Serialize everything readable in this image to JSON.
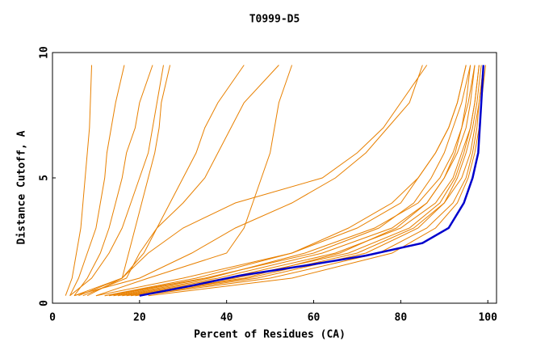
{
  "chart_data": {
    "type": "line",
    "title": "T0999-D5",
    "x_label": "Percent of Residues (CA)",
    "y_label": "Distance Cutoff, A",
    "xlim": [
      0,
      102
    ],
    "ylim": [
      0,
      10
    ],
    "xticks": [
      0,
      20,
      40,
      60,
      80,
      100
    ],
    "yticks": [
      0,
      5,
      10
    ],
    "grid": false,
    "series": [
      {
        "color": "#e88000",
        "x": [
          3,
          4.5,
          5.5,
          6.5,
          7,
          7.5,
          8,
          8.5,
          8.7,
          9
        ],
        "values": [
          0.3,
          1,
          2,
          3,
          4,
          5,
          6,
          7,
          8,
          9.5
        ]
      },
      {
        "color": "#e88000",
        "x": [
          4,
          6,
          8,
          10,
          11,
          12,
          12.5,
          13.5,
          14.5,
          16.5
        ],
        "values": [
          0.3,
          1,
          2,
          3,
          4,
          5,
          6,
          7,
          8,
          9.5
        ]
      },
      {
        "color": "#e88000",
        "x": [
          5,
          8,
          11,
          13,
          14.5,
          16,
          17,
          19,
          20,
          23
        ],
        "values": [
          0.3,
          1,
          2,
          3,
          4,
          5,
          6,
          7,
          8,
          9.5
        ]
      },
      {
        "color": "#e88000",
        "x": [
          4,
          9,
          13,
          16,
          18,
          20,
          22,
          23,
          24,
          25.5
        ],
        "values": [
          0.3,
          1,
          2,
          3,
          4,
          5,
          6,
          7,
          8,
          9.5
        ]
      },
      {
        "color": "#e88000",
        "x": [
          5,
          16,
          17.5,
          19,
          20.5,
          22,
          23.5,
          24.5,
          25,
          27
        ],
        "values": [
          0.3,
          1,
          2,
          3,
          4,
          5,
          6,
          7,
          8,
          9.5
        ]
      },
      {
        "color": "#e88000",
        "x": [
          8,
          16,
          21,
          24,
          27,
          30,
          33,
          35,
          38,
          44
        ],
        "values": [
          0.3,
          1,
          2,
          3,
          4,
          5,
          6,
          7,
          8,
          9.5
        ]
      },
      {
        "color": "#e88000",
        "x": [
          7,
          17,
          20,
          24,
          30,
          35,
          38,
          41,
          44,
          52
        ],
        "values": [
          0.3,
          1,
          2,
          3,
          4,
          5,
          6,
          7,
          8,
          9.5
        ]
      },
      {
        "color": "#e88000",
        "x": [
          10,
          22,
          40,
          44,
          46,
          48,
          50,
          51,
          52,
          55
        ],
        "values": [
          0.3,
          1,
          2,
          3,
          4,
          5,
          6,
          7,
          8,
          9.5
        ]
      },
      {
        "color": "#e88000",
        "x": [
          5,
          20,
          32,
          42,
          55,
          65,
          72,
          77,
          82,
          85
        ],
        "values": [
          0.3,
          1,
          2,
          3,
          4,
          5,
          6,
          7,
          8,
          9.5
        ]
      },
      {
        "color": "#e88000",
        "x": [
          6,
          16,
          22,
          30,
          42,
          62,
          70,
          76,
          80,
          86
        ],
        "values": [
          0.3,
          1,
          2,
          3,
          4,
          5,
          6,
          7,
          8,
          9.5
        ]
      },
      {
        "color": "#e88000",
        "x": [
          10,
          30,
          55,
          70,
          80,
          84,
          88,
          91,
          93,
          95
        ],
        "values": [
          0.3,
          1,
          2,
          3,
          4,
          5,
          6,
          7,
          8,
          9.5
        ]
      },
      {
        "color": "#e88000",
        "x": [
          12,
          35,
          60,
          75,
          83,
          87,
          90,
          92,
          94,
          96
        ],
        "values": [
          0.3,
          1,
          2,
          3,
          4,
          5,
          6,
          7,
          8,
          9.5
        ]
      },
      {
        "color": "#e88000",
        "x": [
          15,
          40,
          65,
          80,
          88,
          92,
          94,
          96,
          97,
          98
        ],
        "values": [
          0.3,
          1,
          2,
          3,
          4,
          5,
          6,
          7,
          8,
          9.5
        ]
      },
      {
        "color": "#e88000",
        "x": [
          18,
          45,
          70,
          83,
          90,
          93,
          95,
          96.5,
          97.5,
          98.5
        ],
        "values": [
          0.3,
          1,
          2,
          3,
          4,
          5,
          6,
          7,
          8,
          9.5
        ]
      },
      {
        "color": "#e88000",
        "x": [
          14,
          38,
          62,
          78,
          86,
          90,
          93,
          95,
          96,
          97
        ],
        "values": [
          0.3,
          1,
          2,
          3,
          4,
          5,
          6,
          7,
          8,
          9.5
        ]
      },
      {
        "color": "#e88000",
        "x": [
          16,
          42,
          68,
          82,
          89,
          92.5,
          94.5,
          96,
          97,
          98
        ],
        "values": [
          0.3,
          1,
          2,
          3,
          4,
          5,
          6,
          7,
          8,
          9.5
        ]
      },
      {
        "color": "#e88000",
        "x": [
          20,
          50,
          75,
          86,
          92,
          95,
          96.5,
          97.5,
          98,
          99
        ],
        "values": [
          0.3,
          1,
          2,
          3,
          4,
          5,
          6,
          7,
          8,
          9.5
        ]
      },
      {
        "color": "#e88000",
        "x": [
          13,
          36,
          58,
          74,
          84,
          89,
          92,
          94,
          95.5,
          97
        ],
        "values": [
          0.3,
          1,
          2,
          3,
          4,
          5,
          6,
          7,
          8,
          9.5
        ]
      },
      {
        "color": "#e88000",
        "x": [
          17,
          44,
          66,
          79,
          86,
          90,
          92.5,
          94,
          95,
          96
        ],
        "values": [
          0.3,
          1,
          2,
          3,
          4,
          5,
          6,
          7,
          8,
          9.5
        ]
      },
      {
        "color": "#e88000",
        "x": [
          22,
          55,
          78,
          88,
          93,
          95.5,
          97,
          98,
          98.5,
          99.5
        ],
        "values": [
          0.3,
          1,
          2,
          3,
          4,
          5,
          6,
          7,
          8,
          9.5
        ]
      },
      {
        "color": "#e88000",
        "x": [
          12,
          33,
          55,
          68,
          78,
          84,
          88,
          91,
          93,
          95
        ],
        "values": [
          0.3,
          1,
          2,
          3,
          4,
          5,
          6,
          7,
          8,
          9.5
        ]
      },
      {
        "color": "#e88000",
        "x": [
          19,
          47,
          72,
          84,
          90,
          94,
          96,
          97,
          98,
          99
        ],
        "values": [
          0.3,
          1,
          2,
          3,
          4,
          5,
          6,
          7,
          8,
          9.5
        ]
      },
      {
        "color": "#0000cc",
        "x": [
          20,
          32,
          43,
          58,
          72,
          85,
          91,
          94.5,
          96.5,
          97.8,
          98.5,
          99
        ],
        "values": [
          0.3,
          0.7,
          1.1,
          1.5,
          1.9,
          2.4,
          3,
          4,
          5,
          6,
          8,
          9.5
        ]
      }
    ]
  }
}
